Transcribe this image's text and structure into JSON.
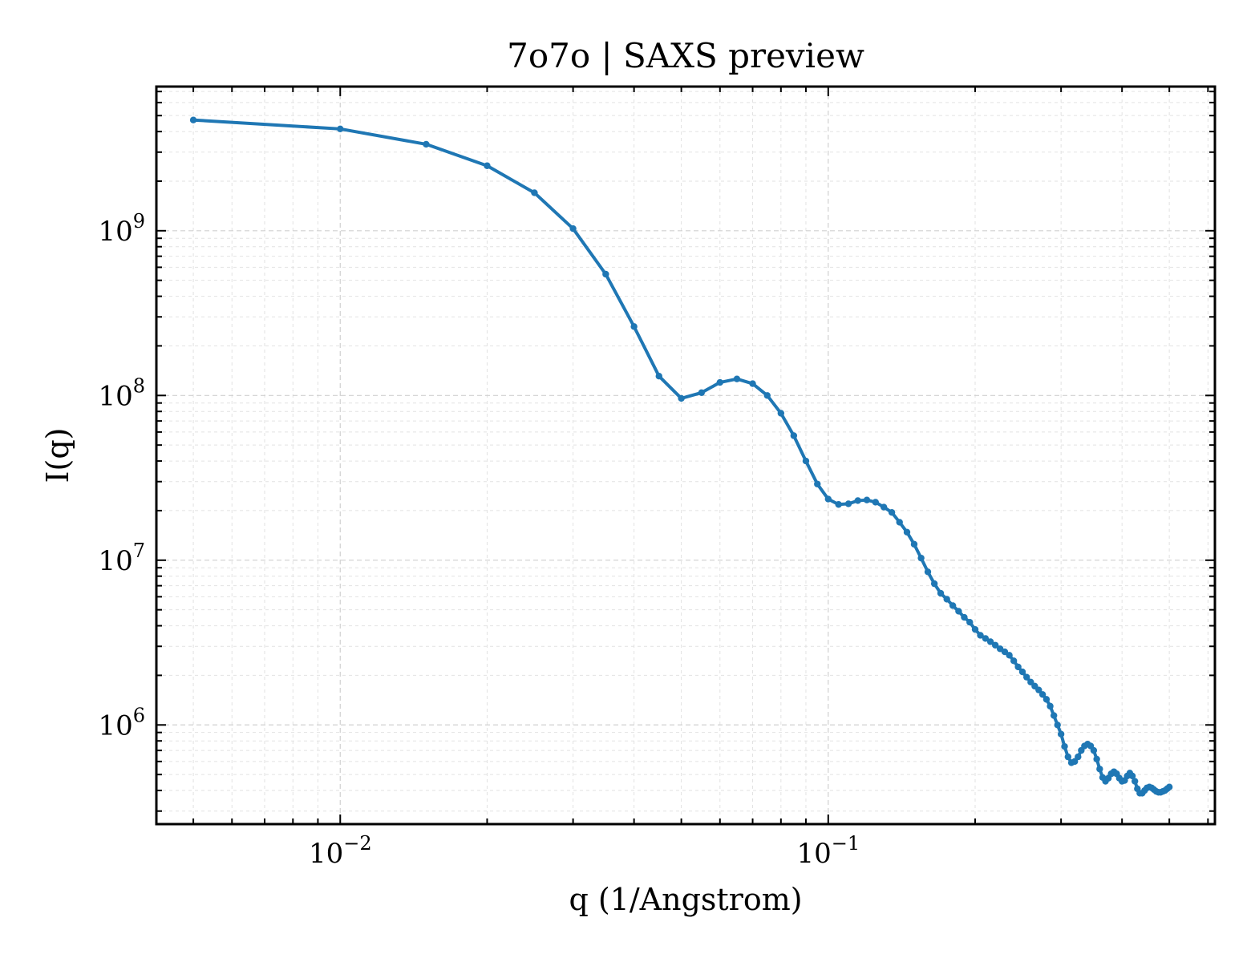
{
  "chart_data": {
    "type": "line",
    "title": "7o7o | SAXS preview",
    "xlabel": "q (1/Angstrom)",
    "ylabel": "I(q)",
    "xscale": "log",
    "yscale": "log",
    "xlim": [
      0.0042,
      0.62
    ],
    "ylim": [
      250000,
      7500000000
    ],
    "grid": true,
    "color": "#1f77b4",
    "x_ticks": [
      {
        "value": 0.01,
        "base": "10",
        "exp": "−2"
      },
      {
        "value": 0.1,
        "base": "10",
        "exp": "−1"
      }
    ],
    "y_ticks": [
      {
        "value": 1000000,
        "base": "10",
        "exp": "6"
      },
      {
        "value": 10000000,
        "base": "10",
        "exp": "7"
      },
      {
        "value": 100000000,
        "base": "10",
        "exp": "8"
      },
      {
        "value": 1000000000,
        "base": "10",
        "exp": "9"
      }
    ],
    "series": [
      {
        "x": [
          0.005,
          0.01,
          0.015,
          0.02,
          0.025,
          0.03,
          0.035,
          0.04,
          0.045,
          0.05,
          0.055,
          0.06,
          0.065,
          0.07,
          0.075,
          0.08,
          0.085,
          0.09,
          0.095,
          0.1,
          0.105,
          0.11,
          0.115,
          0.12,
          0.125,
          0.13,
          0.135,
          0.14,
          0.145,
          0.15,
          0.155,
          0.16,
          0.165,
          0.17,
          0.175,
          0.18,
          0.185,
          0.19,
          0.195,
          0.2,
          0.205,
          0.21,
          0.215,
          0.22,
          0.225,
          0.23,
          0.235,
          0.24,
          0.245,
          0.25,
          0.255,
          0.26,
          0.265,
          0.27,
          0.275,
          0.28,
          0.285,
          0.29,
          0.295,
          0.3,
          0.305,
          0.31,
          0.315,
          0.32,
          0.325,
          0.33,
          0.335,
          0.34,
          0.345,
          0.35,
          0.355,
          0.36,
          0.365,
          0.37,
          0.375,
          0.38,
          0.385,
          0.39,
          0.395,
          0.4,
          0.405,
          0.41,
          0.415,
          0.42,
          0.425,
          0.43,
          0.435,
          0.44,
          0.445,
          0.45,
          0.455,
          0.46,
          0.465,
          0.47,
          0.475,
          0.48,
          0.485,
          0.49,
          0.495,
          0.5
        ],
        "y": [
          4700000000,
          4150000000,
          3350000000,
          2480000000,
          1700000000,
          1030000000,
          545000000,
          262000000,
          131000000,
          96000000,
          104000000,
          120000000,
          126000000,
          118000000,
          100000000,
          78000000,
          57000000,
          40000000,
          29000000,
          23500000,
          21800000,
          22000000,
          23000000,
          23200000,
          22500000,
          21000000,
          19500000,
          17000000,
          14800000,
          12500000,
          10300000,
          8500000,
          7200000,
          6300000,
          5800000,
          5300000,
          4900000,
          4500000,
          4200000,
          3800000,
          3500000,
          3350000,
          3200000,
          3050000,
          2900000,
          2780000,
          2650000,
          2450000,
          2250000,
          2100000,
          1950000,
          1820000,
          1720000,
          1630000,
          1530000,
          1430000,
          1300000,
          1140000,
          1000000,
          880000,
          740000,
          640000,
          590000,
          600000,
          640000,
          700000,
          745000,
          765000,
          745000,
          700000,
          620000,
          540000,
          480000,
          455000,
          475000,
          505000,
          520000,
          505000,
          475000,
          455000,
          460000,
          490000,
          510000,
          490000,
          455000,
          410000,
          385000,
          385000,
          400000,
          415000,
          420000,
          415000,
          405000,
          395000,
          390000,
          390000,
          395000,
          400000,
          410000,
          420000
        ]
      }
    ]
  }
}
